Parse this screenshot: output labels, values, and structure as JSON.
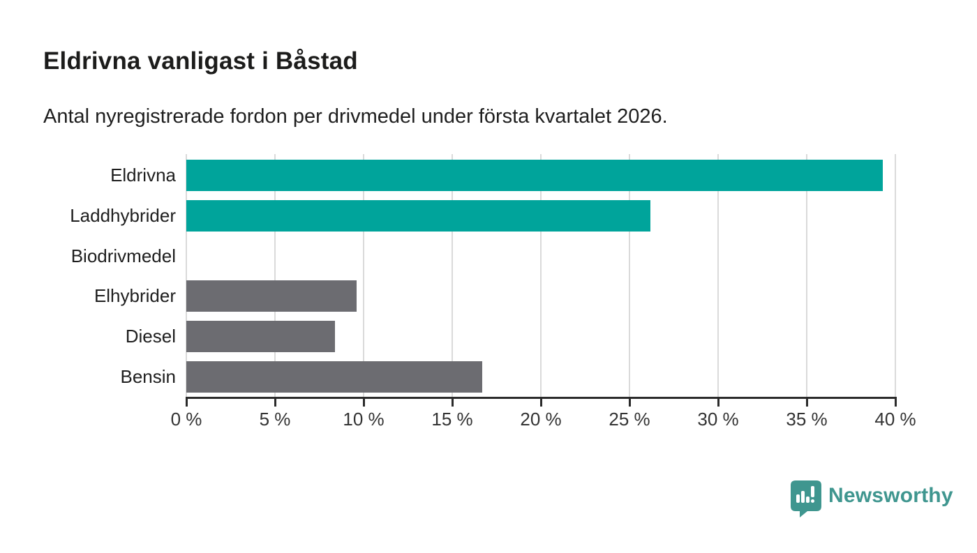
{
  "chart_data": {
    "type": "bar",
    "orientation": "horizontal",
    "title": "Eldrivna vanligast i Båstad",
    "subtitle": "Antal nyregistrerade fordon per drivmedel under första kvartalet 2026.",
    "categories": [
      "Eldrivna",
      "Laddhybrider",
      "Biodrivmedel",
      "Elhybrider",
      "Diesel",
      "Bensin"
    ],
    "values": [
      39.3,
      26.2,
      0,
      9.6,
      8.4,
      16.7
    ],
    "unit": "%",
    "xlim": [
      0,
      40
    ],
    "xticks": [
      0,
      5,
      10,
      15,
      20,
      25,
      30,
      35,
      40
    ],
    "xtick_labels": [
      "0 %",
      "5 %",
      "10 %",
      "15 %",
      "20 %",
      "25 %",
      "30 %",
      "35 %",
      "40 %"
    ],
    "grid": true,
    "legend": false,
    "colors": {
      "highlight": "#00a49b",
      "default": "#6c6c71",
      "gridline": "#dadada",
      "axis": "#2b2b2b"
    },
    "bar_palette": [
      "highlight",
      "highlight",
      "default",
      "default",
      "default",
      "default"
    ]
  },
  "footer": {
    "brand": "Newsworthy",
    "brand_color": "#3f968f",
    "logo_icon": "bar-chart-pin-icon"
  }
}
